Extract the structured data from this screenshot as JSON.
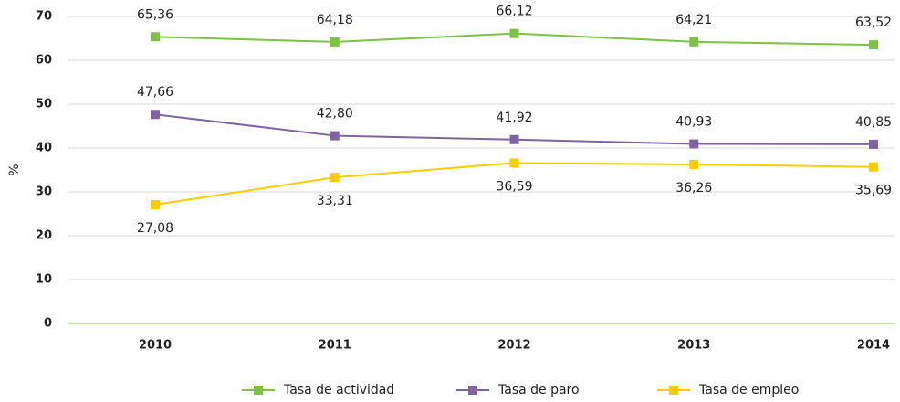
{
  "chart_data": {
    "type": "line",
    "ylabel": "%",
    "categories": [
      "2010",
      "2011",
      "2012",
      "2013",
      "2014"
    ],
    "series": [
      {
        "name": "Tasa de actividad",
        "color": "#7dc242",
        "values": [
          65.36,
          64.18,
          66.12,
          64.21,
          63.52
        ],
        "value_labels": [
          "65,36",
          "64,18",
          "66,12",
          "64,21",
          "63,52"
        ]
      },
      {
        "name": "Tasa de paro",
        "color": "#8064a2",
        "values": [
          47.66,
          42.8,
          41.92,
          40.93,
          40.85
        ],
        "value_labels": [
          "47,66",
          "42,80",
          "41,92",
          "40,93",
          "40,85"
        ]
      },
      {
        "name": "Tasa de empleo",
        "color": "#ffcc00",
        "values": [
          27.08,
          33.31,
          36.59,
          36.26,
          35.69
        ],
        "value_labels": [
          "27,08",
          "33,31",
          "36,59",
          "36,26",
          "35,69"
        ]
      }
    ],
    "ylim": [
      0,
      70
    ],
    "yticks": [
      0,
      10,
      20,
      30,
      40,
      50,
      60,
      70
    ],
    "grid": true,
    "legend": "bottom"
  }
}
